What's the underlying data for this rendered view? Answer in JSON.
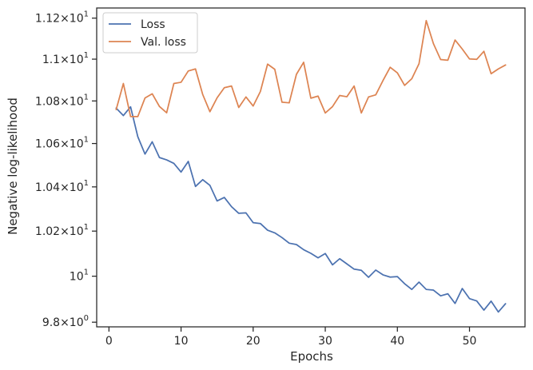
{
  "chart_data": {
    "type": "line",
    "xlabel": "Epochs",
    "ylabel": "Negative log-likelihood",
    "yscale": "log",
    "xlim": [
      -1.7,
      57.7
    ],
    "ylim": [
      9.78,
      11.25
    ],
    "grid": false,
    "legend_position": "top-left",
    "x_ticks": [
      {
        "value": 0,
        "label": "0"
      },
      {
        "value": 10,
        "label": "10"
      },
      {
        "value": 20,
        "label": "20"
      },
      {
        "value": 30,
        "label": "30"
      },
      {
        "value": 40,
        "label": "40"
      },
      {
        "value": 50,
        "label": "50"
      }
    ],
    "y_ticks": [
      {
        "value": 9.8,
        "base": "9.8",
        "mult": "×",
        "exp_base": "10",
        "exp": "0"
      },
      {
        "value": 10.0,
        "base": "10",
        "mult": "",
        "exp_base": "",
        "exp": "1"
      },
      {
        "value": 10.2,
        "base": "1.02",
        "mult": "×",
        "exp_base": "10",
        "exp": "1"
      },
      {
        "value": 10.4,
        "base": "1.04",
        "mult": "×",
        "exp_base": "10",
        "exp": "1"
      },
      {
        "value": 10.6,
        "base": "1.06",
        "mult": "×",
        "exp_base": "10",
        "exp": "1"
      },
      {
        "value": 10.8,
        "base": "1.08",
        "mult": "×",
        "exp_base": "10",
        "exp": "1"
      },
      {
        "value": 11.0,
        "base": "1.1",
        "mult": "×",
        "exp_base": "10",
        "exp": "1"
      },
      {
        "value": 11.2,
        "base": "1.12",
        "mult": "×",
        "exp_base": "10",
        "exp": "1"
      }
    ],
    "x": [
      1,
      2,
      3,
      4,
      5,
      6,
      7,
      8,
      9,
      10,
      11,
      12,
      13,
      14,
      15,
      16,
      17,
      18,
      19,
      20,
      21,
      22,
      23,
      24,
      25,
      26,
      27,
      28,
      29,
      30,
      31,
      32,
      33,
      34,
      35,
      36,
      37,
      38,
      39,
      40,
      41,
      42,
      43,
      44,
      45,
      46,
      47,
      48,
      49,
      50,
      51,
      52,
      53,
      54,
      55
    ],
    "series": [
      {
        "name": "Loss",
        "color": "#4c72b0",
        "values": [
          10.766,
          10.731,
          10.772,
          10.632,
          10.551,
          10.608,
          10.535,
          10.524,
          10.508,
          10.468,
          10.517,
          10.402,
          10.433,
          10.407,
          10.336,
          10.352,
          10.31,
          10.28,
          10.282,
          10.238,
          10.234,
          10.204,
          10.192,
          10.171,
          10.146,
          10.14,
          10.117,
          10.101,
          10.081,
          10.1,
          10.05,
          10.077,
          10.054,
          10.031,
          10.026,
          9.995,
          10.027,
          10.006,
          9.996,
          9.998,
          9.967,
          9.942,
          9.974,
          9.942,
          9.939,
          9.914,
          9.923,
          9.881,
          9.946,
          9.902,
          9.892,
          9.852,
          9.891,
          9.844,
          9.88
        ]
      },
      {
        "name": "Val. loss",
        "color": "#dd8452",
        "values": [
          10.759,
          10.883,
          10.726,
          10.726,
          10.814,
          10.834,
          10.774,
          10.744,
          10.883,
          10.889,
          10.943,
          10.953,
          10.831,
          10.749,
          10.815,
          10.863,
          10.871,
          10.769,
          10.819,
          10.776,
          10.845,
          10.976,
          10.951,
          10.794,
          10.791,
          10.927,
          10.985,
          10.813,
          10.823,
          10.743,
          10.773,
          10.826,
          10.82,
          10.871,
          10.743,
          10.819,
          10.829,
          10.897,
          10.961,
          10.934,
          10.874,
          10.906,
          10.978,
          11.188,
          11.075,
          10.998,
          10.995,
          11.093,
          11.049,
          11.001,
          10.999,
          11.038,
          10.93,
          10.953,
          10.972
        ]
      }
    ]
  }
}
